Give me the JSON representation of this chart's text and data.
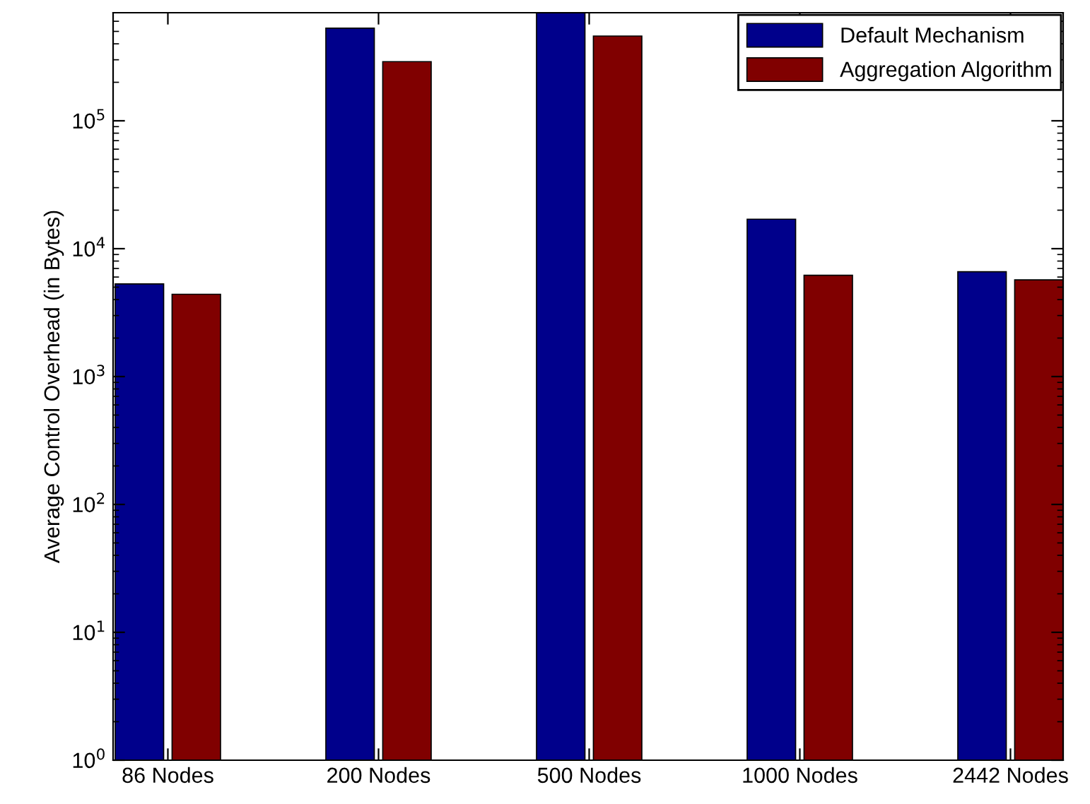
{
  "chart_data": {
    "type": "bar",
    "ylabel": "Average Control Overhead (in Bytes)",
    "categories": [
      "86 Nodes",
      "200 Nodes",
      "500 Nodes",
      "1000 Nodes",
      "2442 Nodes"
    ],
    "series": [
      {
        "name": "Default Mechanism",
        "color": "#00008b",
        "values": [
          5300,
          530000,
          700000,
          17000,
          6600
        ]
      },
      {
        "name": "Aggregation Algorithm",
        "color": "#800000",
        "values": [
          4400,
          290000,
          460000,
          6200,
          5700
        ]
      }
    ],
    "log": "y",
    "ylim": [
      1,
      700000
    ],
    "yticks": [
      {
        "value": 1,
        "label": "10$^{0}$"
      },
      {
        "value": 10,
        "label": "10$^{1}$"
      },
      {
        "value": 100,
        "label": "10$^{2}$"
      },
      {
        "value": 1000,
        "label": "10$^{3}$"
      },
      {
        "value": 10000,
        "label": "10$^{4}$"
      },
      {
        "value": 100000,
        "label": "10$^{5}$"
      }
    ],
    "grid": false,
    "legend": "top right"
  }
}
